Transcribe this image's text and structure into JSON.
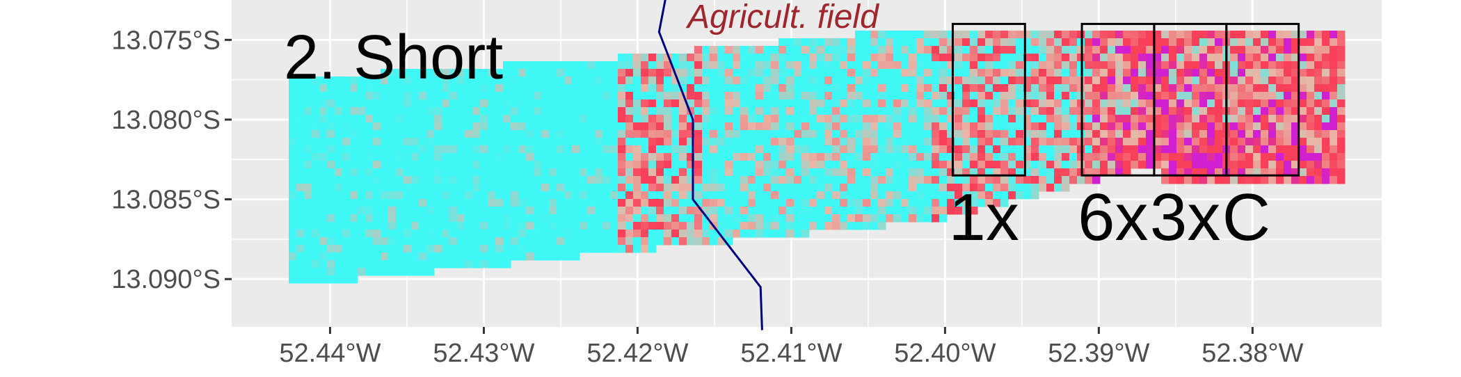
{
  "chart_data": {
    "type": "heatmap",
    "title": "2. Short",
    "annotation": {
      "text": "Agricult. field",
      "color": "#a0262e"
    },
    "xlabel": "",
    "ylabel": "",
    "x_ticks": [
      {
        "value": -52.44,
        "label": "52.44°W"
      },
      {
        "value": -52.43,
        "label": "52.43°W"
      },
      {
        "value": -52.42,
        "label": "52.42°W"
      },
      {
        "value": -52.41,
        "label": "52.41°W"
      },
      {
        "value": -52.4,
        "label": "52.40°W"
      },
      {
        "value": -52.39,
        "label": "52.39°W"
      },
      {
        "value": -52.38,
        "label": "52.38°W"
      }
    ],
    "y_ticks": [
      {
        "value": -13.075,
        "label": "13.075°S"
      },
      {
        "value": -13.08,
        "label": "13.080°S"
      },
      {
        "value": -13.085,
        "label": "13.085°S"
      },
      {
        "value": -13.09,
        "label": "13.090°S"
      }
    ],
    "xlim": [
      -52.4464,
      -52.3716
    ],
    "ylim": [
      -13.093,
      -13.0725
    ],
    "grid": true,
    "colors": {
      "background": "#ebebeb",
      "grid_major": "#ffffff",
      "low": "#3ff8f6",
      "mid": "#e8b8a8",
      "high": "#f8405a",
      "very_high": "#d020d0",
      "boundary_line": "#000080"
    },
    "boundary_line": [
      {
        "lon": -52.4181,
        "lat": -13.072
      },
      {
        "lon": -52.4186,
        "lat": -13.0745
      },
      {
        "lon": -52.4164,
        "lat": -13.08
      },
      {
        "lon": -52.4164,
        "lat": -13.085
      },
      {
        "lon": -52.412,
        "lat": -13.0905
      },
      {
        "lon": -52.4119,
        "lat": -13.0932
      }
    ],
    "plots": [
      {
        "label": "1x",
        "lon_min": -52.3995,
        "lon_max": -52.3948,
        "lat_top": -13.074,
        "lat_bottom": -13.0835
      },
      {
        "label": "6x",
        "lon_min": -52.3911,
        "lon_max": -52.3864,
        "lat_top": -13.074,
        "lat_bottom": -13.0835
      },
      {
        "label": "3x",
        "lon_min": -52.3864,
        "lon_max": -52.3817,
        "lat_top": -13.074,
        "lat_bottom": -13.0835
      },
      {
        "label": "C",
        "lon_min": -52.3817,
        "lon_max": -52.377,
        "lat_top": -13.074,
        "lat_bottom": -13.0835
      }
    ]
  }
}
